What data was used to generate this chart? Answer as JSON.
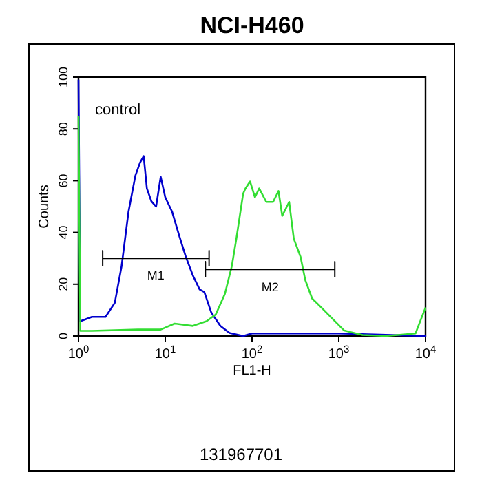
{
  "chart_data": {
    "type": "line",
    "title": "NCI-H460",
    "xlabel": "FL1-H",
    "ylabel": "Counts",
    "log": "x",
    "xlim": [
      1,
      10000
    ],
    "xticks": [
      {
        "value": 1,
        "label": "10$^{0}$"
      },
      {
        "value": 10,
        "label": "10$^{1}$"
      },
      {
        "value": 100,
        "label": "10$^{2}$"
      },
      {
        "value": 1000,
        "label": "10$^{3}$"
      },
      {
        "value": 10000,
        "label": "10$^{4}$"
      }
    ],
    "ylim": [
      0,
      100
    ],
    "yticks": [
      0,
      20,
      40,
      60,
      80,
      100
    ],
    "grid": false,
    "marker": "none",
    "line_style": "solid",
    "series": [
      {
        "color": "#0000cc",
        "x": [
          1,
          1.05,
          1.43,
          2.05,
          2.62,
          3.14,
          3.77,
          4.53,
          5.12,
          5.64,
          6.14,
          6.93,
          7.84,
          8.86,
          10,
          12,
          14.4,
          17.3,
          20.8,
          24.9,
          28.2,
          33.8,
          43.1,
          55,
          79,
          100,
          300,
          1000,
          3000,
          10000
        ],
        "values": [
          99,
          5.7,
          7.4,
          7.4,
          12.8,
          27,
          48,
          62,
          67,
          69.5,
          57,
          52,
          50,
          61.5,
          53.6,
          48,
          39,
          30.5,
          23.4,
          18,
          17,
          9.2,
          3.9,
          1.2,
          0,
          1,
          1,
          1,
          0.5,
          0
        ]
      },
      {
        "color": "#33dd33",
        "x": [
          1,
          1.05,
          1.43,
          4.82,
          8.86,
          12.8,
          20.8,
          29.9,
          38.2,
          48.7,
          58.5,
          66,
          79,
          84,
          95,
          108,
          121,
          146,
          175,
          202,
          223,
          268,
          303,
          363,
          411,
          493,
          630,
          804,
          1156,
          1884,
          3467,
          7660,
          10000
        ],
        "values": [
          85,
          2,
          2,
          2.5,
          2.5,
          4.8,
          3.9,
          5.7,
          8.3,
          16.3,
          27,
          37.6,
          55,
          57,
          59.7,
          53.6,
          57,
          51.8,
          51.8,
          56,
          46.4,
          51.8,
          37.6,
          30.5,
          21.6,
          14.5,
          11,
          7.4,
          2.1,
          0.4,
          0,
          1,
          11
        ]
      },
      {
        "name": "M1",
        "color": "#000000",
        "x": [
          1.9,
          1.9,
          1.9,
          32,
          32,
          32
        ],
        "values": [
          27,
          33,
          30,
          30,
          33,
          27
        ]
      },
      {
        "name": "M2",
        "color": "#000000",
        "x": [
          29,
          29,
          29,
          900,
          900,
          900
        ],
        "values": [
          22.7,
          28.7,
          25.7,
          25.7,
          28.7,
          22.7
        ]
      }
    ],
    "annotations": [
      "control",
      "131967701"
    ]
  }
}
